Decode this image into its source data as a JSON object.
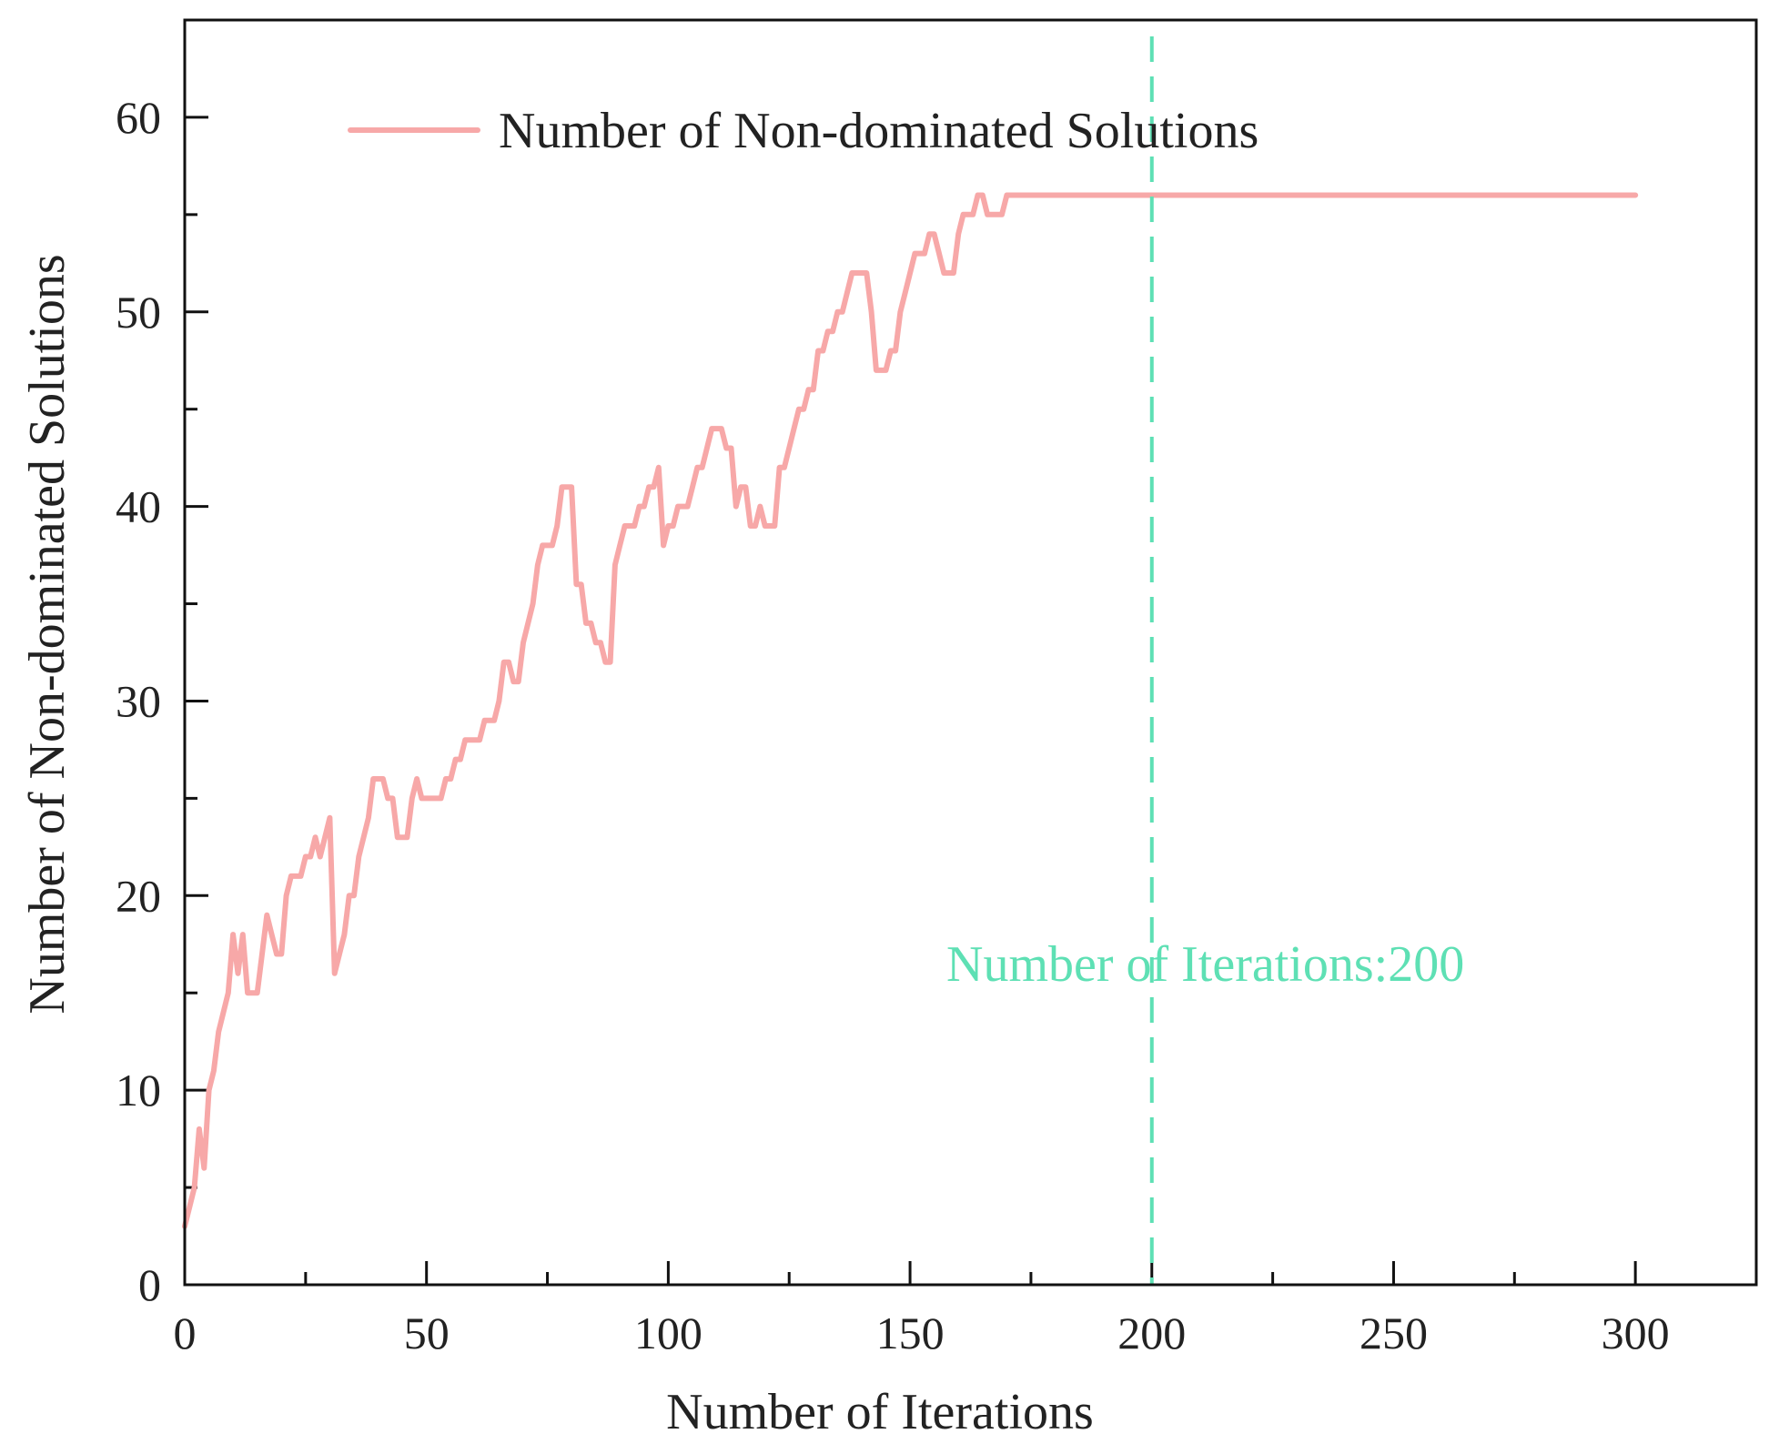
{
  "chart_data": {
    "type": "line",
    "title": "",
    "xlabel": "Number of Iterations",
    "ylabel": "Number of Non-dominated Solutions",
    "xlim": [
      0,
      325
    ],
    "ylim": [
      0,
      65
    ],
    "xticks": [
      0,
      50,
      100,
      150,
      200,
      250,
      300
    ],
    "yticks": [
      0,
      10,
      20,
      30,
      40,
      50,
      60
    ],
    "grid": false,
    "legend": {
      "position": "top-left",
      "entries": [
        "Number of Non-dominated Solutions"
      ]
    },
    "series": [
      {
        "name": "Number of Non-dominated Solutions",
        "color": "#f7a8a8",
        "x": [
          0,
          1,
          2,
          3,
          4,
          5,
          6,
          7,
          8,
          9,
          10,
          11,
          12,
          13,
          14,
          15,
          16,
          17,
          18,
          19,
          20,
          21,
          22,
          23,
          24,
          25,
          26,
          27,
          28,
          29,
          30,
          31,
          32,
          33,
          34,
          35,
          36,
          37,
          38,
          39,
          40,
          41,
          42,
          43,
          44,
          45,
          46,
          47,
          48,
          49,
          50,
          51,
          52,
          53,
          54,
          55,
          56,
          57,
          58,
          59,
          60,
          61,
          62,
          63,
          64,
          65,
          66,
          67,
          68,
          69,
          70,
          71,
          72,
          73,
          74,
          75,
          76,
          77,
          78,
          79,
          80,
          81,
          82,
          83,
          84,
          85,
          86,
          87,
          88,
          89,
          90,
          91,
          92,
          93,
          94,
          95,
          96,
          97,
          98,
          99,
          100,
          101,
          102,
          103,
          104,
          105,
          106,
          107,
          108,
          109,
          110,
          111,
          112,
          113,
          114,
          115,
          116,
          117,
          118,
          119,
          120,
          121,
          122,
          123,
          124,
          125,
          126,
          127,
          128,
          129,
          130,
          131,
          132,
          133,
          134,
          135,
          136,
          137,
          138,
          139,
          140,
          141,
          142,
          143,
          144,
          145,
          146,
          147,
          148,
          149,
          150,
          151,
          152,
          153,
          154,
          155,
          156,
          157,
          158,
          159,
          160,
          161,
          162,
          163,
          164,
          165,
          166,
          167,
          168,
          169,
          170,
          171,
          172,
          173,
          174,
          175,
          300
        ],
        "values": [
          3,
          4,
          5,
          8,
          6,
          10,
          11,
          13,
          14,
          15,
          18,
          16,
          18,
          15,
          15,
          15,
          17,
          19,
          18,
          17,
          17,
          20,
          21,
          21,
          21,
          22,
          22,
          23,
          22,
          23,
          24,
          16,
          17,
          18,
          20,
          20,
          22,
          23,
          24,
          26,
          26,
          26,
          25,
          25,
          23,
          23,
          23,
          25,
          26,
          25,
          25,
          25,
          25,
          25,
          26,
          26,
          27,
          27,
          28,
          28,
          28,
          28,
          29,
          29,
          29,
          30,
          32,
          32,
          31,
          31,
          33,
          34,
          35,
          37,
          38,
          38,
          38,
          39,
          41,
          41,
          41,
          36,
          36,
          34,
          34,
          33,
          33,
          32,
          32,
          37,
          38,
          39,
          39,
          39,
          40,
          40,
          41,
          41,
          42,
          38,
          39,
          39,
          40,
          40,
          40,
          41,
          42,
          42,
          43,
          44,
          44,
          44,
          43,
          43,
          40,
          41,
          41,
          39,
          39,
          40,
          39,
          39,
          39,
          42,
          42,
          43,
          44,
          45,
          45,
          46,
          46,
          48,
          48,
          49,
          49,
          50,
          50,
          51,
          52,
          52,
          52,
          52,
          50,
          47,
          47,
          47,
          48,
          48,
          50,
          51,
          52,
          53,
          53,
          53,
          54,
          54,
          53,
          52,
          52,
          52,
          54,
          55,
          55,
          55,
          56,
          56,
          55,
          55,
          55,
          55,
          56,
          56,
          56,
          56,
          56,
          56,
          56
        ]
      }
    ],
    "annotations": [
      {
        "type": "vline",
        "x": 200,
        "color": "#5ee0b4",
        "style": "dashed",
        "label": "Number of Iterations:200"
      }
    ]
  }
}
